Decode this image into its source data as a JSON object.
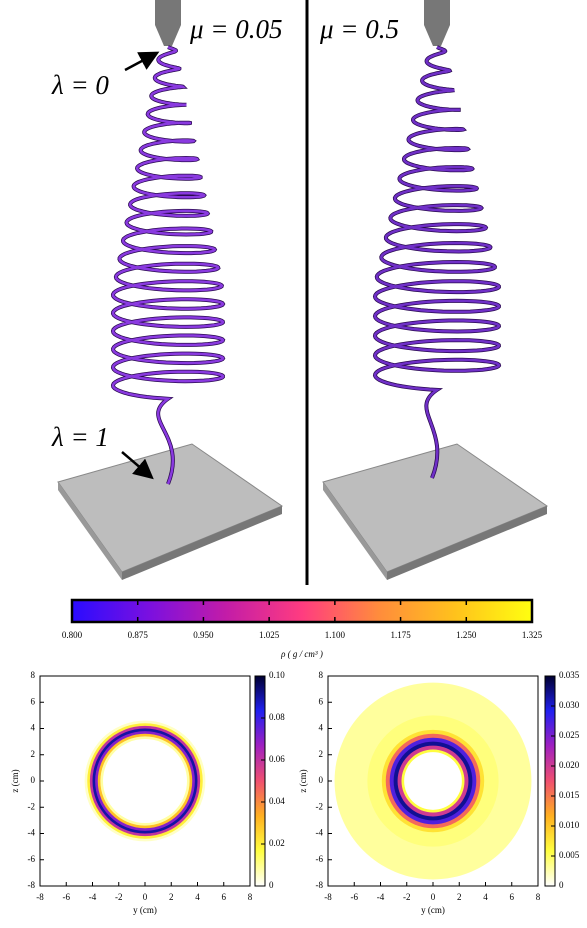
{
  "figure": {
    "panels": [
      {
        "label": "μ = 0.05",
        "start_label": "λ = 0",
        "end_label": "λ = 1"
      },
      {
        "label": "μ = 0.5"
      }
    ]
  },
  "chart_data": [
    {
      "type": "colorbar",
      "xlabel": "ρ ( g / cm³ )",
      "colormap": [
        "#2a0cff",
        "#7a10e0",
        "#c21ca8",
        "#ff3c80",
        "#ff8c3c",
        "#ffc21c",
        "#ffff10"
      ],
      "xlim": [
        0.8,
        1.325
      ],
      "xticks": [
        {
          "value": 0.8,
          "label": "0.800"
        },
        0.875,
        {
          "value": 0.95,
          "label": "0.950"
        },
        1.025,
        {
          "value": 1.1,
          "label": "1.100"
        },
        1.175,
        {
          "value": 1.25,
          "label": "1.250"
        },
        1.325
      ]
    },
    {
      "type": "radial-heatmap",
      "xlabel": "y (cm)",
      "ylabel": "z (cm)",
      "xlim": [
        -8,
        8
      ],
      "ylim": [
        -8,
        8
      ],
      "xticks": [
        -8,
        -6,
        -4,
        -2,
        0,
        2,
        4,
        6,
        8
      ],
      "yticks": [
        -8,
        -6,
        -4,
        -2,
        0,
        2,
        4,
        6,
        8
      ],
      "colormap": [
        "#ffffff",
        "#ffff40",
        "#ffb020",
        "#f05070",
        "#a020c0",
        "#2020f0",
        "#000030"
      ],
      "zlim": [
        0,
        0.1
      ],
      "zticks": [
        0,
        0.02,
        0.04,
        0.06,
        0.08,
        {
          "value": 0.1,
          "label": "0.10"
        }
      ],
      "x": [
        8,
        4.6,
        4.4,
        4.2,
        4.0,
        3.8,
        3.6,
        3.4,
        3.2
      ],
      "values": [
        0,
        0.005,
        0.02,
        0.06,
        0.09,
        0.07,
        0.03,
        0.008,
        0
      ]
    },
    {
      "type": "radial-heatmap",
      "xlabel": "y (cm)",
      "ylabel": "z (cm)",
      "xlim": [
        -8,
        8
      ],
      "ylim": [
        -8,
        8
      ],
      "xticks": [
        -8,
        -6,
        -4,
        -2,
        0,
        2,
        4,
        6,
        8
      ],
      "yticks": [
        -8,
        -6,
        -4,
        -2,
        0,
        2,
        4,
        6,
        8
      ],
      "colormap": [
        "#ffffff",
        "#ffff40",
        "#ffb020",
        "#f05070",
        "#a020c0",
        "#2020f0",
        "#000030"
      ],
      "zlim": [
        0,
        0.035
      ],
      "zticks": [
        0,
        0.005,
        {
          "value": 0.01,
          "label": "0.010"
        },
        0.015,
        {
          "value": 0.02,
          "label": "0.020"
        },
        0.025,
        {
          "value": 0.03,
          "label": "0.030"
        },
        0.035
      ],
      "x": [
        8,
        7.5,
        5,
        3.9,
        3.6,
        3.3,
        3.0,
        2.7,
        2.4,
        2.2
      ],
      "values": [
        0,
        0.003,
        0.004,
        0.008,
        0.016,
        0.027,
        0.032,
        0.02,
        0.006,
        0
      ]
    }
  ]
}
